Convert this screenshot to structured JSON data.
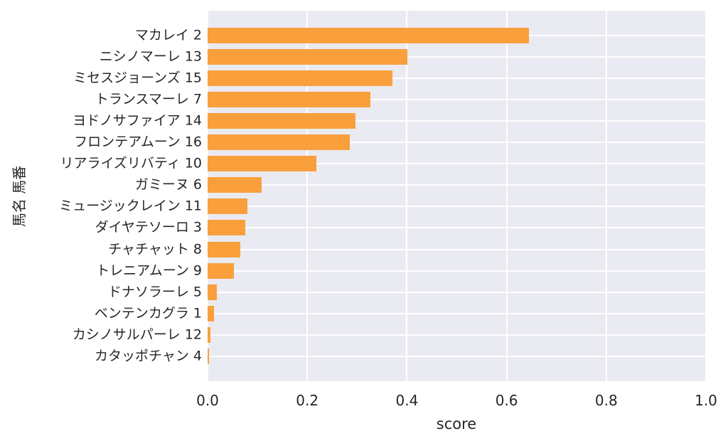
{
  "figure": {
    "background_color": "#ffffff",
    "plot_background_color": "#eaeaf2",
    "grid_color": "#ffffff",
    "bar_color": "#f9a03c",
    "text_color": "#262626"
  },
  "chart_data": {
    "type": "bar",
    "orientation": "horizontal",
    "title": "",
    "xlabel": "score",
    "ylabel": "馬名 馬番",
    "xlim": [
      0.0,
      1.0
    ],
    "grid": true,
    "legend": false,
    "x_tick_labels": [
      "0.0",
      "0.2",
      "0.4",
      "0.6",
      "0.8",
      "1.0"
    ],
    "x_tick_values": [
      0.0,
      0.2,
      0.4,
      0.6,
      0.8,
      1.0
    ],
    "categories": [
      "マカレイ 2",
      "ニシノマーレ 13",
      "ミセスジョーンズ 15",
      "トランスマーレ 7",
      "ヨドノサファイア 14",
      "フロンテアムーン 16",
      "リアライズリバティ 10",
      "ガミーヌ 6",
      "ミュージックレイン 11",
      "ダイヤテソーロ 3",
      "チャチャット 8",
      "トレニアムーン 9",
      "ドナソラーレ 5",
      "ベンテンカグラ 1",
      "カシノサルパーレ 12",
      "カタッポチャン 4"
    ],
    "values": [
      0.645,
      0.401,
      0.371,
      0.327,
      0.297,
      0.286,
      0.218,
      0.108,
      0.08,
      0.076,
      0.066,
      0.053,
      0.019,
      0.013,
      0.005,
      0.003
    ]
  }
}
